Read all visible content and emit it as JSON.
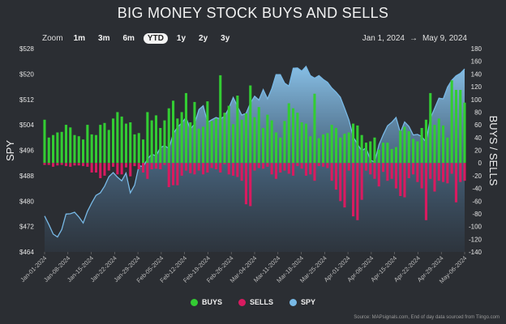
{
  "title": "BIG MONEY STOCK BUYS AND SELLS",
  "zoom": {
    "label": "Zoom",
    "options": [
      "1m",
      "3m",
      "6m",
      "YTD",
      "1y",
      "2y",
      "3y"
    ],
    "active": "YTD"
  },
  "range": {
    "from": "Jan 1, 2024",
    "arrow": "→",
    "to": "May 9, 2024"
  },
  "legend": [
    {
      "name": "BUYS",
      "color": "#33cc33"
    },
    {
      "name": "SELLS",
      "color": "#d81b60"
    },
    {
      "name": "SPY",
      "color": "#78b9e6"
    }
  ],
  "source": "Source: MAPsignals.com, End of day data sourced from Tiingo.com",
  "chart_data": {
    "type": "bar",
    "title": "BIG MONEY STOCK BUYS AND SELLS",
    "ylabel_left": "SPY",
    "ylabel_right": "BUYS / SELLS",
    "yleft_lim": [
      464,
      528
    ],
    "yleft_ticks": [
      "$464",
      "$472",
      "$480",
      "$488",
      "$496",
      "$504",
      "$512",
      "$520",
      "$528"
    ],
    "yright_lim": [
      -140,
      180
    ],
    "yright_ticks": [
      "-140",
      "-120",
      "-100",
      "-80",
      "-60",
      "-40",
      "-20",
      "0",
      "20",
      "40",
      "60",
      "80",
      "100",
      "120",
      "140",
      "160",
      "180"
    ],
    "x_ticks": [
      "Jan-01-2024",
      "Jan-08-2024",
      "Jan-15-2024",
      "Jan-22-2024",
      "Jan-29-2024",
      "Feb-05-2024",
      "Feb-12-2024",
      "Feb-19-2024",
      "Feb-26-2024",
      "Mar-04-2024",
      "Mar-11-2024",
      "Mar-18-2024",
      "Mar-25-2024",
      "Apr-01-2024",
      "Apr-08-2024",
      "Apr-15-2024",
      "Apr-22-2024",
      "Apr-29-2024",
      "May-06-2024"
    ],
    "series": [
      {
        "name": "BUYS",
        "values": [
          68,
          40,
          44,
          48,
          49,
          60,
          56,
          44,
          42,
          37,
          60,
          45,
          44,
          60,
          63,
          52,
          70,
          80,
          73,
          62,
          64,
          45,
          47,
          37,
          80,
          67,
          75,
          55,
          67,
          86,
          98,
          70,
          80,
          110,
          64,
          96,
          54,
          57,
          97,
          66,
          70,
          138,
          79,
          90,
          61,
          106,
          68,
          78,
          122,
          72,
          88,
          55,
          76,
          67,
          48,
          40,
          66,
          94,
          86,
          79,
          64,
          62,
          42,
          109,
          39,
          45,
          47,
          60,
          55,
          40,
          46,
          48,
          62,
          59,
          44,
          32,
          34,
          40,
          21,
          32,
          32,
          22,
          25,
          51,
          57,
          50,
          38,
          34,
          55,
          68,
          110,
          60,
          70,
          59,
          40,
          130,
          115,
          115,
          95
        ]
      },
      {
        "name": "SELLS",
        "values": [
          -3,
          -3,
          -6,
          -4,
          -3,
          -5,
          -6,
          -4,
          -4,
          -5,
          -6,
          -15,
          -15,
          -24,
          -20,
          -12,
          -6,
          -18,
          -18,
          -7,
          -21,
          -5,
          -10,
          -15,
          -25,
          -10,
          -9,
          -10,
          -3,
          -38,
          -35,
          -35,
          -20,
          -12,
          -16,
          -18,
          -12,
          -18,
          -15,
          -8,
          -10,
          -15,
          -2,
          -18,
          -20,
          -22,
          -28,
          -65,
          -68,
          -12,
          -8,
          -9,
          -6,
          -18,
          -25,
          -15,
          -12,
          -17,
          -20,
          -5,
          -9,
          -20,
          -18,
          -28,
          -5,
          -6,
          -8,
          -28,
          -42,
          -60,
          -70,
          -12,
          -84,
          -90,
          -58,
          -12,
          -18,
          -25,
          -37,
          -14,
          -28,
          -25,
          -40,
          -52,
          -54,
          -24,
          -18,
          -30,
          -40,
          -90,
          -25,
          -45,
          -28,
          -30,
          -32,
          -17,
          -62,
          -30,
          -28
        ]
      },
      {
        "name": "SPY",
        "values": [
          475.3,
          472.6,
          469.6,
          468.7,
          471.0,
          475.9,
          476.0,
          476.5,
          475.0,
          473.1,
          476.8,
          479.4,
          481.8,
          482.6,
          484.7,
          487.7,
          489.0,
          487.5,
          486.4,
          488.8,
          482.6,
          485.0,
          491.1,
          490.9,
          493.2,
          494.8,
          494.2,
          496.8,
          497.5,
          496.5,
          501.2,
          503.3,
          504.6,
          506.3,
          502.6,
          504.3,
          508.8,
          510.0,
          504.8,
          505.6,
          506.3,
          505.9,
          506.7,
          509.3,
          512.6,
          509.8,
          507.1,
          507.6,
          510.8,
          513.0,
          511.8,
          515.1,
          512.2,
          515.3,
          519.8,
          519.8,
          517.1,
          516.2,
          521.8,
          521.9,
          520.9,
          522.4,
          519.5,
          518.7,
          519.5,
          518.3,
          517.4,
          515.6,
          514.3,
          512.7,
          509.2,
          505.5,
          500.2,
          497.9,
          495.8,
          496.8,
          493.0,
          492.2,
          497.7,
          500.9,
          503.7,
          504.8,
          506.3,
          501.5,
          504.9,
          503.5,
          500.8,
          501.0,
          500.3,
          498.6,
          506.0,
          509.2,
          512.4,
          512.2,
          515.9,
          518.0,
          519.4,
          520.2,
          521.6
        ]
      }
    ]
  }
}
